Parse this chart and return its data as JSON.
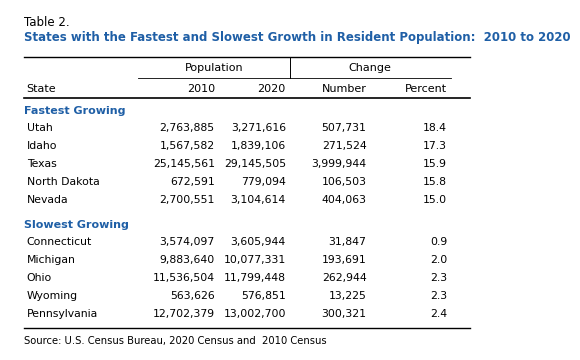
{
  "title_line1": "Table 2.",
  "title_line2": "States with the Fastest and Slowest Growth in Resident Population:  2010 to 2020",
  "col_headers": [
    "State",
    "2010",
    "2020",
    "Number",
    "Percent"
  ],
  "group_headers": [
    "Fastest Growing",
    "Slowest Growing"
  ],
  "fastest_rows": [
    [
      "Utah",
      "2,763,885",
      "3,271,616",
      "507,731",
      "18.4"
    ],
    [
      "Idaho",
      "1,567,582",
      "1,839,106",
      "271,524",
      "17.3"
    ],
    [
      "Texas",
      "25,145,561",
      "29,145,505",
      "3,999,944",
      "15.9"
    ],
    [
      "North Dakota",
      "672,591",
      "779,094",
      "106,503",
      "15.8"
    ],
    [
      "Nevada",
      "2,700,551",
      "3,104,614",
      "404,063",
      "15.0"
    ]
  ],
  "slowest_rows": [
    [
      "Connecticut",
      "3,574,097",
      "3,605,944",
      "31,847",
      "0.9"
    ],
    [
      "Michigan",
      "9,883,640",
      "10,077,331",
      "193,691",
      "2.0"
    ],
    [
      "Ohio",
      "11,536,504",
      "11,799,448",
      "262,944",
      "2.3"
    ],
    [
      "Wyoming",
      "563,626",
      "576,851",
      "13,225",
      "2.3"
    ],
    [
      "Pennsylvania",
      "12,702,379",
      "13,002,700",
      "300,321",
      "2.4"
    ]
  ],
  "source": "Source: U.S. Census Bureau, 2020 Census and  2010 Census",
  "bg_color": "#ffffff",
  "title_color": "#1f5fa6",
  "group_header_color": "#1f5fa6",
  "text_color": "#000000",
  "title1_fontsize": 8.5,
  "title2_fontsize": 8.5,
  "header_fontsize": 8.0,
  "data_fontsize": 7.8,
  "source_fontsize": 7.2,
  "col_boundaries": [
    0.0,
    0.27,
    0.44,
    0.59,
    0.76,
    0.93
  ]
}
